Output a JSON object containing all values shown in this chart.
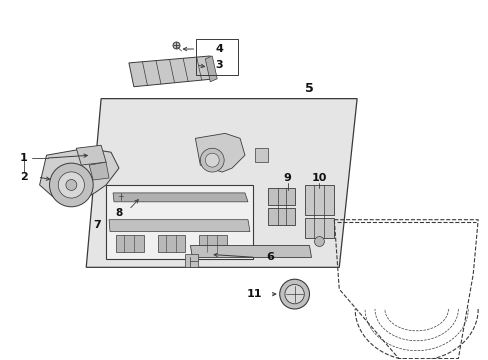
{
  "background_color": "#ffffff",
  "line_color": "#3a3a3a",
  "label_color": "#111111",
  "fill_light": "#e8e8e8",
  "fill_mid": "#d0d0d0",
  "fill_dark": "#b8b8b8"
}
